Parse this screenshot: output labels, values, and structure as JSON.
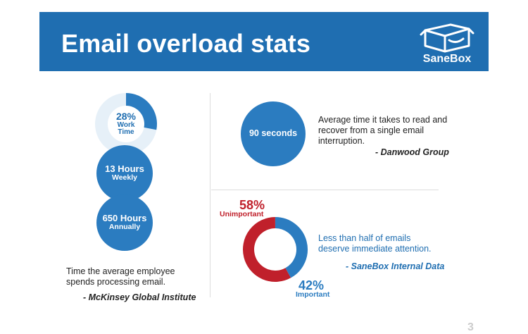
{
  "header": {
    "title": "Email overload stats",
    "logo_text": "SaneBox",
    "logo_icon": "box-icon"
  },
  "left": {
    "ring": {
      "percent_label": "28%",
      "percent_value": 28,
      "line1": "Work",
      "line2": "Time"
    },
    "weekly": {
      "value": "13 Hours",
      "label": "Weekly"
    },
    "annual": {
      "value": "650 Hours",
      "label": "Annually"
    },
    "caption_line1": "Time the average employee",
    "caption_line2": "spends processing email.",
    "source": "- McKinsey Global Institute"
  },
  "top_right": {
    "circle_label": "90 seconds",
    "text_line1": "Average time it takes to read and",
    "text_line2": "recover from a single email",
    "text_line3": "interruption.",
    "source": "- Danwood Group"
  },
  "bottom_right": {
    "unimportant_pct": "58%",
    "unimportant_label": "Unimportant",
    "unimportant_value": 58,
    "important_pct": "42%",
    "important_label": "Important",
    "important_value": 42,
    "text_line1": "Less than half of emails",
    "text_line2": "deserve immediate attention.",
    "source": "- SaneBox Internal Data"
  },
  "colors": {
    "blue": "#2b7cc0",
    "header_blue": "#1f6eb1",
    "red": "#c0202b",
    "ring_track": "#e6f0f8"
  },
  "page_number": "3"
}
